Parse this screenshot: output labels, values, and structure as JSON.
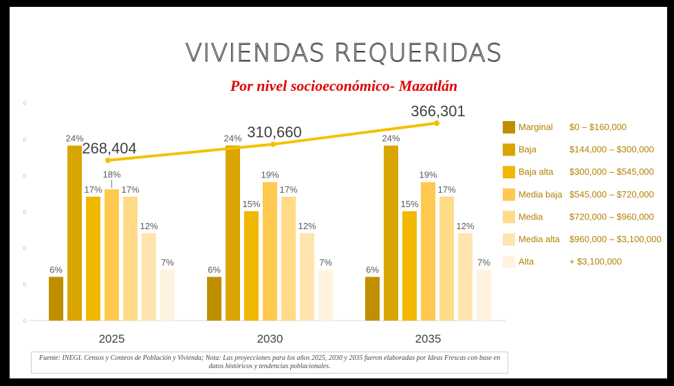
{
  "title": "VIVIENDAS REQUERIDAS",
  "subtitle": "Por nivel socioeconómico- Mazatlán",
  "footnote": "Fuente: INEGI. Censos y Conteos de Población y Vivienda; Nota: Las proyecciones para los años 2025, 2030 y 2035 fueron elaboradas por Ideas Frescas con base en datos históricos y tendencias poblacionales.",
  "colors": [
    "#bf8f00",
    "#d9a500",
    "#f2b700",
    "#ffc94f",
    "#ffdb87",
    "#ffe4b0",
    "#fff3e0"
  ],
  "line_color": "#f5c000",
  "chart_data": {
    "type": "bar",
    "categories": [
      "2025",
      "2030",
      "2035"
    ],
    "ylim": [
      0,
      30
    ],
    "y_ticks": [
      "0",
      "0",
      "0",
      "0",
      "0",
      "0",
      "0"
    ],
    "series": [
      {
        "name": "Marginal",
        "range": "$0 – $160,000",
        "values": [
          6,
          6,
          6
        ],
        "labels": [
          "6%",
          "6%",
          "6%"
        ]
      },
      {
        "name": "Baja",
        "range": "$144,000 – $300,000",
        "values": [
          24,
          24,
          24
        ],
        "labels": [
          "24%",
          "24%",
          "24%"
        ]
      },
      {
        "name": "Baja alta",
        "range": "$300,000 – $545,000",
        "values": [
          17,
          15,
          15
        ],
        "labels": [
          "17%",
          "15%",
          "15%"
        ]
      },
      {
        "name": "Media baja",
        "range": "$545,000 – $720,000",
        "values": [
          18,
          19,
          19
        ],
        "labels": [
          "18%",
          "19%",
          "19%"
        ]
      },
      {
        "name": "Media",
        "range": "$720,000 – $960,000",
        "values": [
          17,
          17,
          17
        ],
        "labels": [
          "17%",
          "17%",
          "17%"
        ]
      },
      {
        "name": "Media alta",
        "range": "$960,000 – $3,100,000",
        "values": [
          12,
          12,
          12
        ],
        "labels": [
          "12%",
          "12%",
          "12%"
        ]
      },
      {
        "name": "Alta",
        "range": "+ $3,100,000",
        "values": [
          7,
          7,
          7
        ],
        "labels": [
          "7%",
          "7%",
          "7%"
        ]
      }
    ],
    "totals": {
      "name": "Viviendas requeridas",
      "values": [
        268404,
        310660,
        366301
      ],
      "labels": [
        "268,404",
        "310,660",
        "366,301"
      ]
    }
  }
}
